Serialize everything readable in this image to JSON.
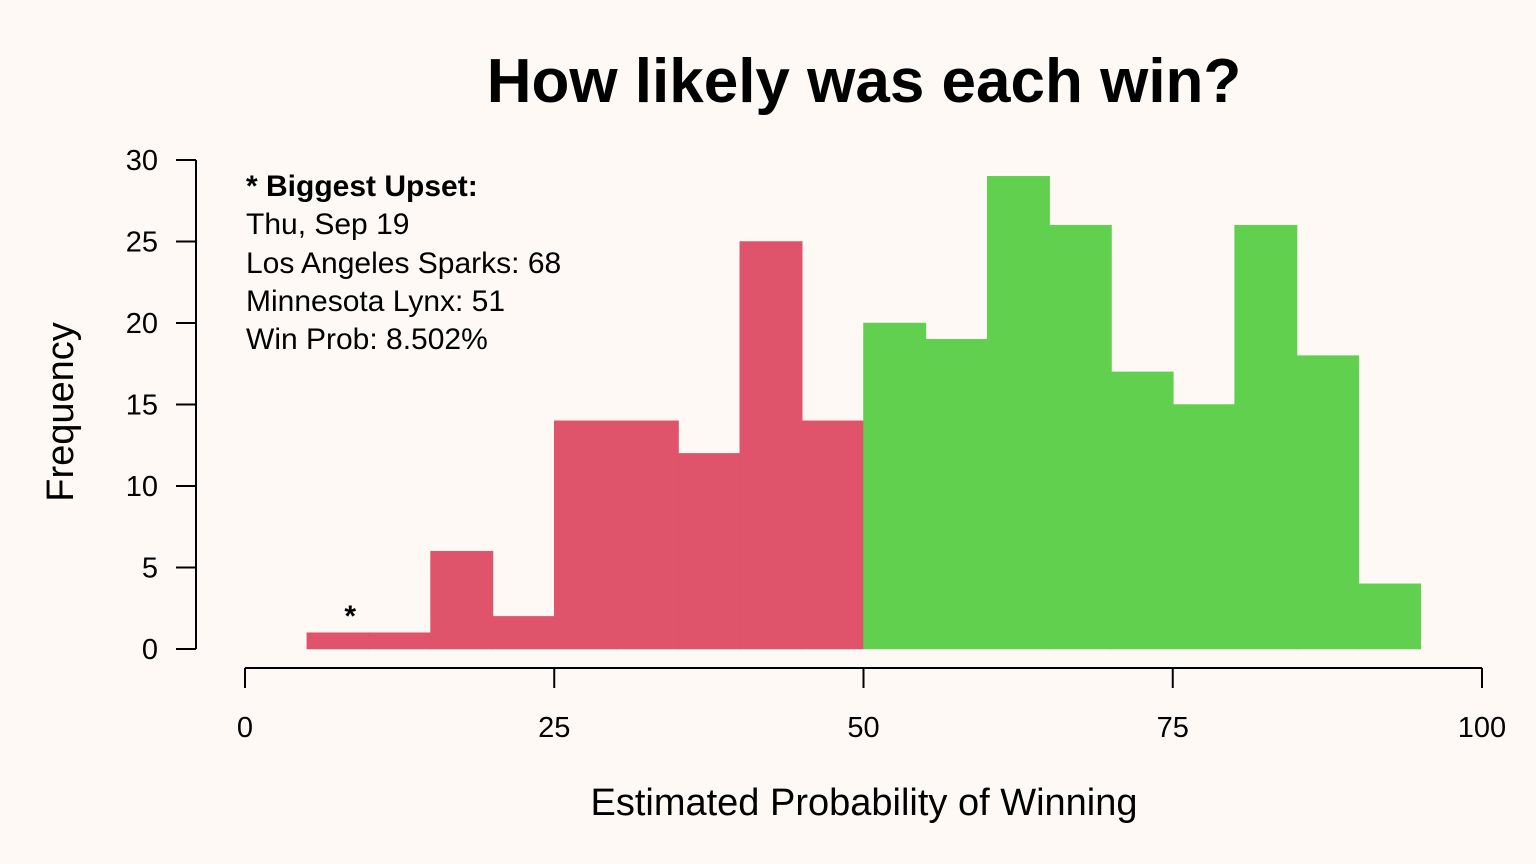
{
  "chart_data": {
    "type": "bar",
    "title": "How likely was each win?",
    "xlabel": "Estimated Probability of Winning",
    "ylabel": "Frequency",
    "xlim": [
      0,
      100
    ],
    "ylim": [
      0,
      30
    ],
    "x_ticks": [
      0,
      25,
      50,
      75,
      100
    ],
    "y_ticks": [
      0,
      5,
      10,
      15,
      20,
      25,
      30
    ],
    "bin_width": 5,
    "bins": [
      {
        "x0": 5,
        "x1": 10,
        "count": 1
      },
      {
        "x0": 10,
        "x1": 15,
        "count": 1
      },
      {
        "x0": 15,
        "x1": 20,
        "count": 6
      },
      {
        "x0": 20,
        "x1": 25,
        "count": 2
      },
      {
        "x0": 25,
        "x1": 30,
        "count": 14
      },
      {
        "x0": 30,
        "x1": 35,
        "count": 14
      },
      {
        "x0": 35,
        "x1": 40,
        "count": 12
      },
      {
        "x0": 40,
        "x1": 45,
        "count": 25
      },
      {
        "x0": 45,
        "x1": 50,
        "count": 14
      },
      {
        "x0": 50,
        "x1": 55,
        "count": 20
      },
      {
        "x0": 55,
        "x1": 60,
        "count": 19
      },
      {
        "x0": 60,
        "x1": 65,
        "count": 29
      },
      {
        "x0": 65,
        "x1": 70,
        "count": 26
      },
      {
        "x0": 70,
        "x1": 75,
        "count": 17
      },
      {
        "x0": 75,
        "x1": 80,
        "count": 15
      },
      {
        "x0": 80,
        "x1": 85,
        "count": 26
      },
      {
        "x0": 85,
        "x1": 90,
        "count": 18
      },
      {
        "x0": 90,
        "x1": 95,
        "count": 4
      }
    ],
    "threshold": 50,
    "colors": {
      "below_threshold": "#DF536B",
      "above_threshold": "#61D04F",
      "background": "#FEF9F5"
    },
    "annotation": {
      "heading": "* Biggest Upset:",
      "lines": [
        "Thu, Sep 19",
        "Los Angeles Sparks: 68",
        "Minnesota Lynx: 51",
        "Win Prob: 8.502%"
      ],
      "marker": "*",
      "marker_x": 8.502
    }
  }
}
